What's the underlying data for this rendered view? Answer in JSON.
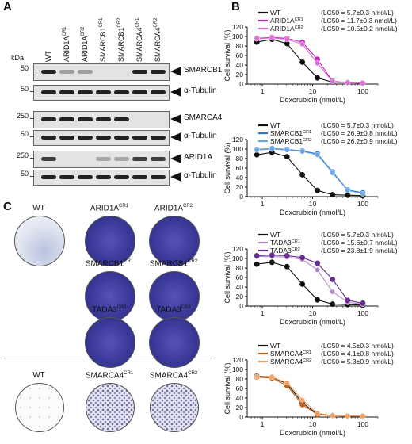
{
  "panel_letters": {
    "a": "A",
    "b": "B",
    "c": "C"
  },
  "lanes": [
    {
      "name": "WT",
      "sup": ""
    },
    {
      "name": "ARID1A",
      "sup": "CR1"
    },
    {
      "name": "ARID1A",
      "sup": "CR2"
    },
    {
      "name": "SMARCB1",
      "sup": "CR1"
    },
    {
      "name": "SMARCB1",
      "sup": "CR2"
    },
    {
      "name": "SMARCA4",
      "sup": "CR1"
    },
    {
      "name": "SMARCA4",
      "sup": "CR2"
    }
  ],
  "kda_unit": "kDa",
  "blots": [
    {
      "kda": "50",
      "protein": "SMARCB1",
      "intensity": [
        1,
        0.35,
        0.35,
        0,
        0,
        1,
        1
      ]
    },
    {
      "kda": "50",
      "protein": "α-Tubulin",
      "intensity": [
        1,
        1,
        1,
        1,
        1,
        1,
        1
      ]
    },
    {
      "kda": "250",
      "protein": "SMARCA4",
      "intensity": [
        1,
        1,
        1,
        1,
        1,
        0,
        0
      ]
    },
    {
      "kda": "50",
      "protein": "α-Tubulin",
      "intensity": [
        1,
        1,
        1,
        1,
        1,
        1,
        1
      ]
    },
    {
      "kda": "250",
      "protein": "ARID1A",
      "intensity": [
        0.85,
        0,
        0,
        0.3,
        0.3,
        0.85,
        0.85
      ]
    },
    {
      "kda": "50",
      "protein": "α-Tubulin",
      "intensity": [
        1,
        1,
        1,
        1,
        1,
        1,
        1
      ]
    }
  ],
  "plates_top": [
    {
      "name": "WT",
      "sup": "",
      "stain": "light"
    },
    {
      "name": "ARID1A",
      "sup": "CR1",
      "stain": "dense"
    },
    {
      "name": "ARID1A",
      "sup": "CR2",
      "stain": "dense"
    },
    {
      "name": "SMARCB1",
      "sup": "CR1",
      "stain": "dense"
    },
    {
      "name": "SMARCB1",
      "sup": "CR2",
      "stain": "dense"
    },
    {
      "name": "TADA3",
      "sup": "CR1",
      "stain": "dense"
    },
    {
      "name": "TADA3",
      "sup": "CR2",
      "stain": "dense"
    }
  ],
  "plates_bottom": [
    {
      "name": "WT",
      "sup": "",
      "stain": "clear"
    },
    {
      "name": "SMARCA4",
      "sup": "CR1",
      "stain": "speckled"
    },
    {
      "name": "SMARCA4",
      "sup": "CR2",
      "stain": "speckled"
    }
  ],
  "colors": {
    "wt": "#111111",
    "arid1a": "#c026b0",
    "smarcb1": "#2d74c9",
    "tada3": "#6a2c8e",
    "smarca4": "#e07a22",
    "plate_blue": "#3b3a9a"
  },
  "chart_data": [
    {
      "type": "line",
      "xlabel": "Doxorubicin (nmol/L)",
      "ylabel": "Cell survival (%)",
      "x_scale": "log",
      "x_ticks": [
        "1",
        "10",
        "100"
      ],
      "y_ticks": [
        "0",
        "20",
        "40",
        "60",
        "80",
        "100",
        "120"
      ],
      "ylim": [
        0,
        120
      ],
      "series": [
        {
          "name": "WT",
          "sup": "",
          "lc50": "(LC50 = 5.7±0.3 nmol/L)",
          "color": "#111111",
          "light": false,
          "x": [
            0.78,
            1.56,
            3.1,
            6.25,
            12.5,
            25,
            50,
            100
          ],
          "y": [
            88,
            94,
            85,
            46,
            13,
            4,
            3,
            2
          ]
        },
        {
          "name": "ARID1A",
          "sup": "CR1",
          "lc50": "(LC50 = 11.7±0.3 nmol/L)",
          "color": "#c026b0",
          "light": false,
          "x": [
            0.78,
            1.56,
            3.1,
            6.25,
            12.5,
            25,
            50,
            100
          ],
          "y": [
            96,
            98,
            96,
            88,
            52,
            6,
            3,
            2
          ]
        },
        {
          "name": "ARID1A",
          "sup": "CR2",
          "lc50": "(LC50 = 10.5±0.2 nmol/L)",
          "color": "#e06ad6",
          "light": true,
          "x": [
            0.78,
            1.56,
            3.1,
            6.25,
            12.5,
            25,
            50,
            100
          ],
          "y": [
            95,
            97,
            94,
            84,
            44,
            5,
            3,
            2
          ]
        }
      ]
    },
    {
      "type": "line",
      "xlabel": "Doxorubicin (nmol/L)",
      "ylabel": "Cell survival (%)",
      "x_scale": "log",
      "x_ticks": [
        "1",
        "10",
        "100"
      ],
      "y_ticks": [
        "0",
        "20",
        "40",
        "60",
        "80",
        "100",
        "120"
      ],
      "ylim": [
        0,
        120
      ],
      "series": [
        {
          "name": "WT",
          "sup": "",
          "lc50": "(LC50 = 5.7±0.3 nmol/L)",
          "color": "#111111",
          "light": false,
          "x": [
            0.78,
            1.56,
            3.1,
            6.25,
            12.5,
            25,
            50,
            100
          ],
          "y": [
            88,
            93,
            84,
            46,
            13,
            4,
            3,
            2
          ]
        },
        {
          "name": "SMARCB1",
          "sup": "CR1",
          "lc50": "(LC50 = 26.9±0.8 nmol/L)",
          "color": "#2d74c9",
          "light": false,
          "x": [
            0.78,
            1.56,
            3.1,
            6.25,
            12.5,
            25,
            50,
            100
          ],
          "y": [
            99,
            101,
            99,
            96,
            90,
            52,
            14,
            8
          ]
        },
        {
          "name": "SMARCB1",
          "sup": "CR2",
          "lc50": "(LC50 = 26.2±0.9 nmol/L)",
          "color": "#6aa6e6",
          "light": true,
          "x": [
            0.78,
            1.56,
            3.1,
            6.25,
            12.5,
            25,
            50,
            100
          ],
          "y": [
            98,
            100,
            98,
            95,
            88,
            50,
            13,
            6
          ]
        }
      ]
    },
    {
      "type": "line",
      "xlabel": "Doxorubicin (nmol/L)",
      "ylabel": "Cell survival (%)",
      "x_scale": "log",
      "x_ticks": [
        "1",
        "10",
        "100"
      ],
      "y_ticks": [
        "0",
        "20",
        "40",
        "60",
        "80",
        "100",
        "120"
      ],
      "ylim": [
        0,
        120
      ],
      "series": [
        {
          "name": "WT",
          "sup": "",
          "lc50": "(LC50 = 5.7±0.3 nmol/L)",
          "color": "#111111",
          "light": false,
          "x": [
            0.78,
            1.56,
            3.1,
            6.25,
            12.5,
            25,
            50,
            100
          ],
          "y": [
            88,
            92,
            83,
            46,
            13,
            4,
            3,
            2
          ]
        },
        {
          "name": "TADA3",
          "sup": "CR1",
          "lc50": "(LC50 = 15.6±0.7 nmol/L)",
          "color": "#b78ad0",
          "light": true,
          "x": [
            0.78,
            1.56,
            3.1,
            6.25,
            12.5,
            25,
            50,
            100
          ],
          "y": [
            104,
            104,
            103,
            98,
            76,
            30,
            8,
            4
          ]
        },
        {
          "name": "TADA3",
          "sup": "CR2",
          "lc50": "(LC50 = 23.8±1.9 nmol/L)",
          "color": "#6a2c8e",
          "light": false,
          "x": [
            0.78,
            1.56,
            3.1,
            6.25,
            12.5,
            25,
            50,
            100
          ],
          "y": [
            106,
            107,
            106,
            102,
            90,
            56,
            12,
            6
          ]
        }
      ]
    },
    {
      "type": "line",
      "xlabel": "Doxorubicin (nmol/L)",
      "ylabel": "Cell survival (%)",
      "x_scale": "log",
      "x_ticks": [
        "1",
        "10",
        "100"
      ],
      "y_ticks": [
        "0",
        "20",
        "40",
        "60",
        "80",
        "100",
        "120"
      ],
      "ylim": [
        0,
        120
      ],
      "series": [
        {
          "name": "WT",
          "sup": "",
          "lc50": "(LC50 = 4.5±0.3 nmol/L)",
          "color": "#111111",
          "light": false,
          "x": [
            0.78,
            1.56,
            3.1,
            6.25,
            12.5,
            25,
            50,
            100
          ],
          "y": [
            86,
            84,
            70,
            30,
            6,
            3,
            2,
            2
          ]
        },
        {
          "name": "SMARCA4",
          "sup": "CR1",
          "lc50": "(LC50 = 4.1±0.8 nmol/L)",
          "color": "#c75f14",
          "light": false,
          "x": [
            0.78,
            1.56,
            3.1,
            6.25,
            12.5,
            25,
            50,
            100
          ],
          "y": [
            84,
            82,
            66,
            26,
            5,
            3,
            2,
            2
          ]
        },
        {
          "name": "SMARCA4",
          "sup": "CR2",
          "lc50": "(LC50 = 5.3±0.9 nmol/L)",
          "color": "#f0a060",
          "light": true,
          "x": [
            0.78,
            1.56,
            3.1,
            6.25,
            12.5,
            25,
            50,
            100
          ],
          "y": [
            85,
            84,
            72,
            36,
            8,
            3,
            2,
            2
          ]
        }
      ]
    }
  ]
}
